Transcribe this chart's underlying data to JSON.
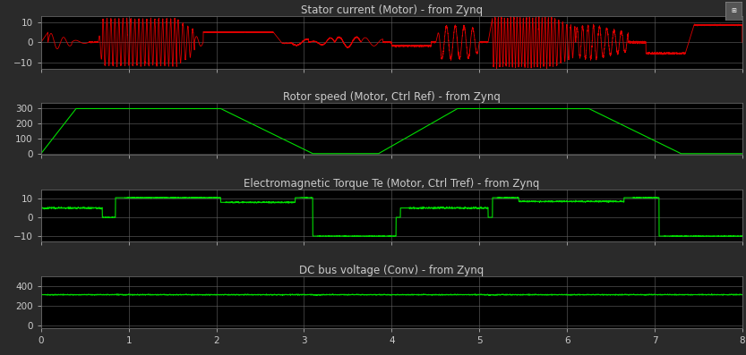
{
  "bg_color": "#2a2a2a",
  "plot_bg_color": "#000000",
  "grid_color": "#666666",
  "text_color": "#cccccc",
  "title1": "Stator current (Motor) - from Zynq",
  "title2": "Rotor speed (Motor, Ctrl Ref) - from Zynq",
  "title3": "Electromagnetic Torque Te (Motor, Ctrl Tref) - from Zynq",
  "title4": "DC bus voltage (Conv) - from Zynq",
  "xlim": [
    0,
    8
  ],
  "ylim1": [
    -13,
    13
  ],
  "ylim2": [
    -10,
    340
  ],
  "ylim3": [
    -13,
    15
  ],
  "ylim4": [
    -30,
    500
  ],
  "yticks1": [
    -10,
    0,
    10
  ],
  "yticks2": [
    0,
    100,
    200,
    300
  ],
  "yticks3": [
    -10,
    0,
    10
  ],
  "yticks4": [
    0,
    200,
    400
  ],
  "xticks": [
    0,
    1,
    2,
    3,
    4,
    5,
    6,
    7,
    8
  ],
  "red_color": "#dd0000",
  "green_color": "#00dd00",
  "title_fontsize": 8.5,
  "tick_fontsize": 7.5,
  "linewidth_red": 0.6,
  "linewidth_green": 0.8
}
